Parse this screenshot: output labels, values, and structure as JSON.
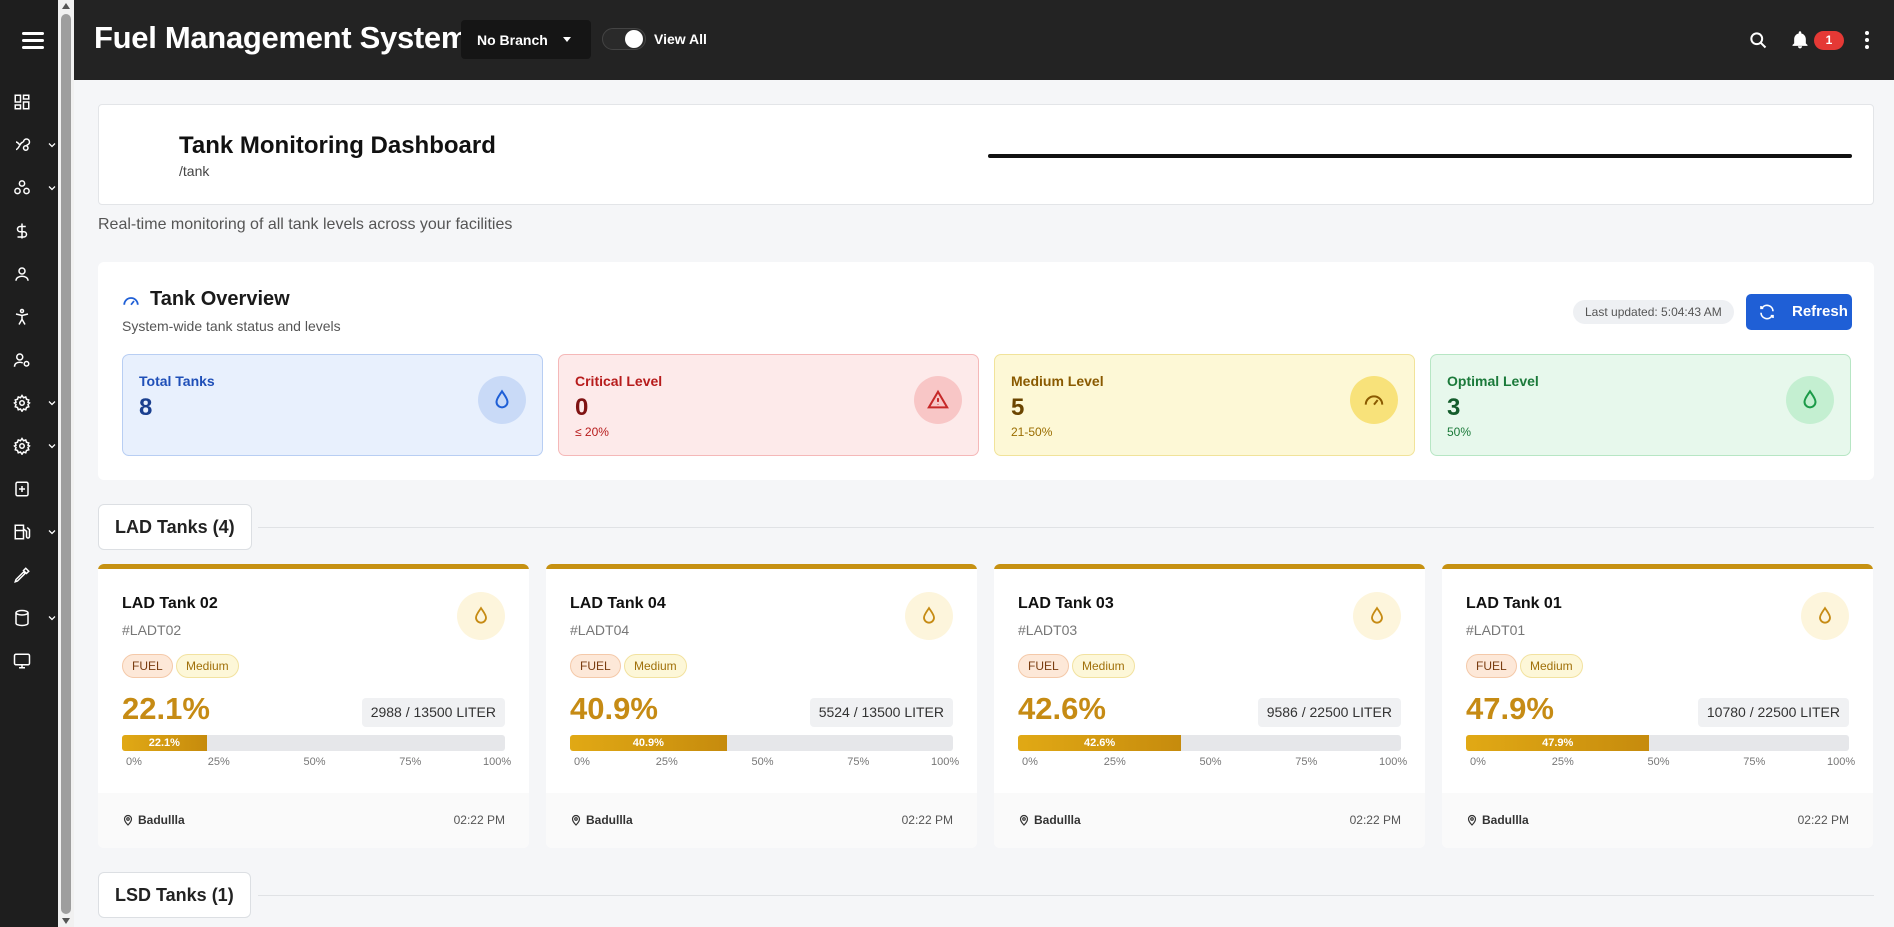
{
  "app": {
    "title": "Fuel Management System",
    "branch_select": "No Branch",
    "view_all_label": "View All",
    "view_all_on": true,
    "notification_count": "1"
  },
  "sidebar": {
    "items": [
      {
        "icon": "dashboard-icon",
        "has_submenu": false
      },
      {
        "icon": "fuel-pump-icon",
        "has_submenu": true
      },
      {
        "icon": "hierarchy-icon",
        "has_submenu": true
      },
      {
        "icon": "dollar-icon",
        "has_submenu": false
      },
      {
        "icon": "user-icon",
        "has_submenu": false
      },
      {
        "icon": "accessibility-icon",
        "has_submenu": false
      },
      {
        "icon": "user-settings-icon",
        "has_submenu": false
      },
      {
        "icon": "gear-icon",
        "has_submenu": true
      },
      {
        "icon": "gear-icon",
        "has_submenu": true
      },
      {
        "icon": "ledger-icon",
        "has_submenu": false
      },
      {
        "icon": "fuel-station-icon",
        "has_submenu": true
      },
      {
        "icon": "pipette-icon",
        "has_submenu": false
      },
      {
        "icon": "database-icon",
        "has_submenu": true
      },
      {
        "icon": "monitor-icon",
        "has_submenu": false
      }
    ]
  },
  "header": {
    "title": "Tank Monitoring Dashboard",
    "route": "/tank",
    "subtitle": "Real-time monitoring of all tank levels across your facilities"
  },
  "overview": {
    "title": "Tank Overview",
    "description": "System-wide tank status and levels",
    "last_updated": "Last updated: 5:04:43 AM",
    "refresh_label": "Refresh",
    "stats": [
      {
        "label": "Total Tanks",
        "value": "8",
        "sub": "",
        "icon": "droplet-icon",
        "color": "#1f4fb8"
      },
      {
        "label": "Critical Level",
        "value": "0",
        "sub": "≤ 20%",
        "icon": "warning-icon",
        "color": "#b71c1c"
      },
      {
        "label": "Medium Level",
        "value": "5",
        "sub": "21-50%",
        "icon": "gauge-icon",
        "color": "#8a5a00"
      },
      {
        "label": "Optimal Level",
        "value": "3",
        "sub": "50%",
        "icon": "droplet-icon",
        "color": "#1b7a3a"
      }
    ]
  },
  "sections": [
    {
      "title": "LAD Tanks (4)"
    },
    {
      "title": "LSD Tanks (1)"
    }
  ],
  "tanks": [
    {
      "name": "LAD Tank 02",
      "code": "#LADT02",
      "fuel": "FUEL",
      "level": "Medium",
      "percent_label": "22.1%",
      "fill": 0.221,
      "volume": "2988 / 13500 LITER",
      "location": "Badullla",
      "time": "02:22 PM"
    },
    {
      "name": "LAD Tank 04",
      "code": "#LADT04",
      "fuel": "FUEL",
      "level": "Medium",
      "percent_label": "40.9%",
      "fill": 0.409,
      "volume": "5524 / 13500 LITER",
      "location": "Badullla",
      "time": "02:22 PM"
    },
    {
      "name": "LAD Tank 03",
      "code": "#LADT03",
      "fuel": "FUEL",
      "level": "Medium",
      "percent_label": "42.6%",
      "fill": 0.426,
      "volume": "9586 / 22500 LITER",
      "location": "Badullla",
      "time": "02:22 PM"
    },
    {
      "name": "LAD Tank 01",
      "code": "#LADT01",
      "fuel": "FUEL",
      "level": "Medium",
      "percent_label": "47.9%",
      "fill": 0.479,
      "volume": "10780 / 22500 LITER",
      "location": "Badullla",
      "time": "02:22 PM"
    }
  ],
  "scale_ticks": [
    "0%",
    "25%",
    "50%",
    "75%",
    "100%"
  ]
}
